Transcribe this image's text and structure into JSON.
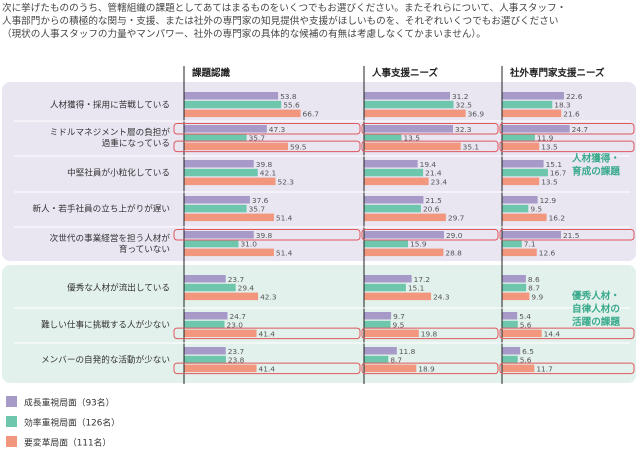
{
  "intro": {
    "line1": "次に挙げたもののうち、管轄組織の課題としてあてはまるものをいくつでもお選びください。またそれらについて、人事スタッフ・",
    "line2": "人事部門からの積極的な関与・支援、または社外の専門家の知見提供や支援がほしいものを、それぞれいくつでもお選びください",
    "line3": "（現状の人事スタッフの力量やマンパワー、社外の専門家の具体的な候補の有無は考慮しなくてかまいません）。"
  },
  "colors": {
    "growth": "#a79ac8",
    "efficiency": "#6ec7ad",
    "reform": "#f2967d",
    "band_top": "#e9e6f2",
    "band_bottom": "#e3f1ec",
    "highlight": "#e0575c",
    "group_label": "#3aaa8c"
  },
  "chart_data": {
    "type": "bar",
    "orientation": "horizontal",
    "panels": [
      "課題認識",
      "人事支援ニーズ",
      "社外専門家支援ニーズ"
    ],
    "groups": [
      {
        "label_lines": [
          "人材獲得・",
          "育成の課題"
        ],
        "categories": [
          0,
          1,
          2,
          3,
          4
        ]
      },
      {
        "label_lines": [
          "優秀人材・",
          "自律人材の",
          "活躍の課題"
        ],
        "categories": [
          5,
          6,
          7
        ]
      }
    ],
    "categories": [
      {
        "lines": [
          "人材獲得・採用に苦戦している"
        ]
      },
      {
        "lines": [
          "ミドルマネジメント層の負担が",
          "過重になっている"
        ]
      },
      {
        "lines": [
          "中堅社員が小粒化している"
        ]
      },
      {
        "lines": [
          "新人・若手社員の立ち上がりが遅い"
        ]
      },
      {
        "lines": [
          "次世代の事業経営を担う人材が",
          "育っていない"
        ]
      },
      {
        "lines": [
          "優秀な人材が流出している"
        ]
      },
      {
        "lines": [
          "難しい仕事に挑戦する人が少ない"
        ]
      },
      {
        "lines": [
          "メンバーの自発的な活動が少ない"
        ]
      }
    ],
    "series": [
      {
        "key": "growth",
        "name": "成長重視局面（93名）",
        "values": [
          [
            53.8,
            31.2,
            22.6
          ],
          [
            47.3,
            32.3,
            24.7
          ],
          [
            39.8,
            19.4,
            15.1
          ],
          [
            37.6,
            21.5,
            12.9
          ],
          [
            39.8,
            29.0,
            21.5
          ],
          [
            23.7,
            17.2,
            8.6
          ],
          [
            24.7,
            9.7,
            5.4
          ],
          [
            23.7,
            11.8,
            6.5
          ]
        ]
      },
      {
        "key": "efficiency",
        "name": "効率重視局面（126名）",
        "values": [
          [
            55.6,
            32.5,
            18.3
          ],
          [
            35.7,
            13.5,
            11.9
          ],
          [
            42.1,
            21.4,
            16.7
          ],
          [
            35.7,
            20.6,
            9.5
          ],
          [
            31.0,
            15.9,
            7.1
          ],
          [
            29.4,
            15.1,
            8.7
          ],
          [
            23.0,
            9.5,
            5.6
          ],
          [
            23.8,
            8.7,
            5.6
          ]
        ]
      },
      {
        "key": "reform",
        "name": "要変革局面（111名）",
        "values": [
          [
            66.7,
            36.9,
            21.6
          ],
          [
            59.5,
            35.1,
            13.5
          ],
          [
            52.3,
            23.4,
            13.5
          ],
          [
            51.4,
            29.7,
            16.2
          ],
          [
            51.4,
            28.8,
            12.6
          ],
          [
            42.3,
            24.3,
            9.9
          ],
          [
            41.4,
            19.8,
            14.4
          ],
          [
            41.4,
            18.9,
            11.7
          ]
        ]
      }
    ],
    "highlights": [
      {
        "series": "growth",
        "category": 1
      },
      {
        "series": "reform",
        "category": 1
      },
      {
        "series": "growth",
        "category": 4
      },
      {
        "series": "reform",
        "category": 6
      },
      {
        "series": "reform",
        "category": 7
      }
    ],
    "xlim": [
      0,
      100
    ]
  }
}
